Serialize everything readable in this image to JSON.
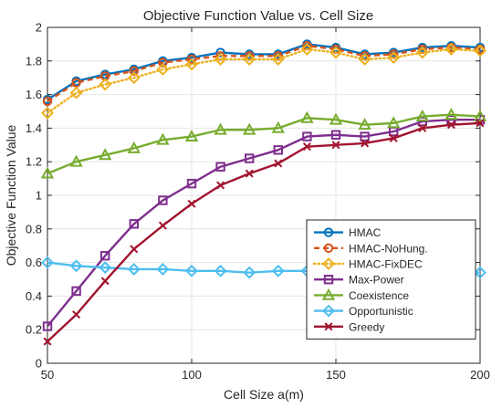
{
  "chart_data": {
    "type": "line",
    "title": "Objective Function Value vs. Cell Size",
    "xlabel": "Cell Size a(m)",
    "ylabel": "Objective Function Value",
    "xlim": [
      50,
      200
    ],
    "ylim": [
      0,
      2
    ],
    "xticks": [
      "50",
      "100",
      "150",
      "200"
    ],
    "yticks": [
      "0",
      "0.2",
      "0.4",
      "0.6",
      "0.8",
      "1",
      "1.2",
      "1.4",
      "1.6",
      "1.8",
      "2"
    ],
    "grid": true,
    "legend_position": "lower-right",
    "x": [
      50,
      60,
      70,
      80,
      90,
      100,
      110,
      120,
      130,
      140,
      150,
      160,
      170,
      180,
      190,
      200
    ],
    "series": [
      {
        "name": "HMAC",
        "color": "#0072BD",
        "marker": "circle",
        "dash": "solid",
        "values": [
          1.57,
          1.68,
          1.72,
          1.75,
          1.8,
          1.82,
          1.85,
          1.84,
          1.84,
          1.9,
          1.88,
          1.84,
          1.85,
          1.88,
          1.89,
          1.88
        ]
      },
      {
        "name": "HMAC-NoHung.",
        "color": "#D95319",
        "marker": "circle",
        "dash": "dashed",
        "values": [
          1.56,
          1.67,
          1.71,
          1.74,
          1.79,
          1.81,
          1.83,
          1.83,
          1.83,
          1.89,
          1.87,
          1.83,
          1.84,
          1.87,
          1.88,
          1.87
        ]
      },
      {
        "name": "HMAC-FixDEC",
        "color": "#EDB120",
        "marker": "diamond",
        "dash": "dotted",
        "values": [
          1.49,
          1.61,
          1.66,
          1.7,
          1.75,
          1.78,
          1.81,
          1.81,
          1.81,
          1.87,
          1.85,
          1.81,
          1.82,
          1.85,
          1.87,
          1.86
        ]
      },
      {
        "name": "Max-Power",
        "color": "#7E2F8E",
        "marker": "square",
        "dash": "solid",
        "values": [
          0.22,
          0.43,
          0.64,
          0.83,
          0.97,
          1.07,
          1.17,
          1.22,
          1.27,
          1.35,
          1.36,
          1.35,
          1.38,
          1.44,
          1.45,
          1.45
        ]
      },
      {
        "name": "Coexistence",
        "color": "#77AC30",
        "marker": "triangle",
        "dash": "solid",
        "values": [
          1.13,
          1.2,
          1.24,
          1.28,
          1.33,
          1.35,
          1.39,
          1.39,
          1.4,
          1.46,
          1.45,
          1.42,
          1.43,
          1.47,
          1.48,
          1.47
        ]
      },
      {
        "name": "Opportunistic",
        "color": "#4DBEEE",
        "marker": "diamond",
        "dash": "solid",
        "values": [
          0.6,
          0.58,
          0.57,
          0.56,
          0.56,
          0.55,
          0.55,
          0.54,
          0.55,
          0.55,
          0.55,
          0.55,
          0.55,
          0.55,
          0.55,
          0.54
        ]
      },
      {
        "name": "Greedy",
        "color": "#A2142F",
        "marker": "x",
        "dash": "solid",
        "values": [
          0.13,
          0.29,
          0.49,
          0.68,
          0.82,
          0.95,
          1.06,
          1.13,
          1.19,
          1.29,
          1.3,
          1.31,
          1.34,
          1.4,
          1.42,
          1.43
        ]
      }
    ]
  }
}
